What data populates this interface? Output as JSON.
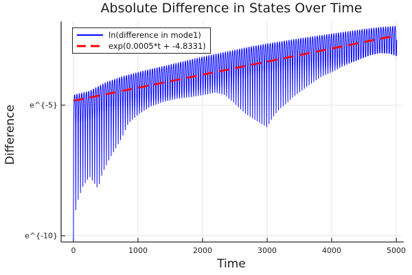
{
  "chart_data": {
    "type": "line",
    "title": "Absolute Difference in States Over Time",
    "xlabel": "Time",
    "ylabel": "Difference",
    "grid": true,
    "background": "#ffffff",
    "grid_color": "#e4e4e4",
    "axis_color": "#2a2a2a",
    "text_color": "#1c1c1c",
    "x_axis": {
      "min": -191,
      "max": 5085,
      "ticks": [
        0,
        1000,
        2000,
        3000,
        4000,
        5000
      ]
    },
    "y_axis": {
      "min": -10.24,
      "max": -1.79,
      "scale": "natural-log",
      "ticks": [
        {
          "value": -5,
          "label": "e^{-5}"
        },
        {
          "value": -10,
          "label": "e^{-10}"
        }
      ]
    },
    "legend_position": "top-left",
    "series": [
      {
        "name": "ln(difference in mode1)",
        "color": "#0000ff",
        "style": "solid",
        "width": 1,
        "description": "rapidly oscillating ln|difference in mode 1| between a lower and upper envelope; sharp downward spikes at each oscillation minimum",
        "oscillation_period": 36.5,
        "t_range": [
          0,
          5010
        ],
        "upper_envelope": [
          [
            0,
            -4.6
          ],
          [
            250,
            -4.45
          ],
          [
            500,
            -4.12
          ],
          [
            750,
            -3.9
          ],
          [
            1000,
            -3.73
          ],
          [
            1250,
            -3.58
          ],
          [
            1500,
            -3.44
          ],
          [
            1750,
            -3.29
          ],
          [
            2000,
            -3.14
          ],
          [
            2250,
            -3.01
          ],
          [
            2500,
            -2.88
          ],
          [
            2750,
            -2.75
          ],
          [
            3000,
            -2.64
          ],
          [
            3250,
            -2.54
          ],
          [
            3500,
            -2.44
          ],
          [
            3750,
            -2.35
          ],
          [
            4000,
            -2.26
          ],
          [
            4250,
            -2.17
          ],
          [
            4500,
            -2.08
          ],
          [
            4750,
            -2.01
          ],
          [
            5010,
            -1.96
          ]
        ],
        "lower_envelope": [
          [
            0,
            -10.2
          ],
          [
            37,
            -9.0
          ],
          [
            80,
            -8.55
          ],
          [
            150,
            -8.1
          ],
          [
            250,
            -7.74
          ],
          [
            310,
            -7.95
          ],
          [
            380,
            -8.2
          ],
          [
            450,
            -7.6
          ],
          [
            550,
            -7.1
          ],
          [
            650,
            -6.68
          ],
          [
            750,
            -6.25
          ],
          [
            850,
            -5.7
          ],
          [
            1000,
            -5.37
          ],
          [
            1200,
            -5.05
          ],
          [
            1400,
            -4.87
          ],
          [
            1600,
            -4.76
          ],
          [
            1850,
            -4.68
          ],
          [
            2050,
            -4.6
          ],
          [
            2200,
            -4.52
          ],
          [
            2350,
            -4.62
          ],
          [
            2500,
            -4.95
          ],
          [
            2650,
            -5.3
          ],
          [
            2800,
            -5.55
          ],
          [
            3000,
            -5.85
          ],
          [
            3080,
            -5.5
          ],
          [
            3180,
            -5.18
          ],
          [
            3280,
            -4.98
          ],
          [
            3400,
            -4.7
          ],
          [
            3550,
            -4.42
          ],
          [
            3700,
            -4.15
          ],
          [
            3850,
            -3.9
          ],
          [
            4000,
            -3.75
          ],
          [
            4150,
            -3.55
          ],
          [
            4300,
            -3.38
          ],
          [
            4450,
            -3.22
          ],
          [
            4600,
            -3.08
          ],
          [
            4750,
            -3.0
          ],
          [
            4900,
            -3.02
          ],
          [
            5010,
            -3.12
          ]
        ]
      },
      {
        "name": "exp(0.0005*t + -4.8331)",
        "color": "#ff0000",
        "style": "dashed",
        "width": 2.6,
        "fit": {
          "slope": 0.0005,
          "intercept": -4.8331
        },
        "points_ln": [
          [
            0,
            -4.8331
          ],
          [
            5000,
            -2.3331
          ]
        ]
      }
    ]
  }
}
